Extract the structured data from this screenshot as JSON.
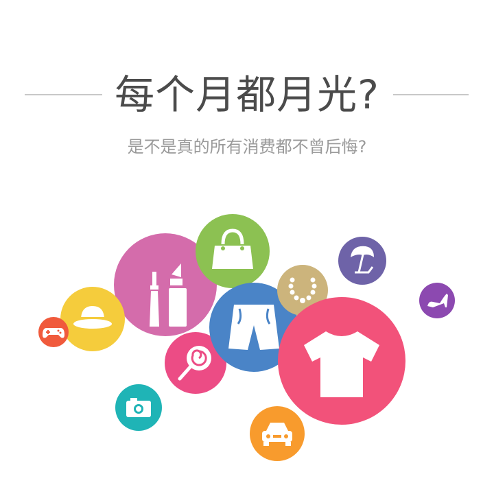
{
  "title": "每个月都月光?",
  "subtitle": "是不是真的所有消费都不曾后悔?",
  "colors": {
    "title": "#4b4b4b",
    "subtitle": "#9a9a9a",
    "rule": "#c8c8c8",
    "cosmetics": "#d46cab",
    "handbag": "#8cc152",
    "hat": "#f5cc3c",
    "gamepad": "#f05a3c",
    "lollipop": "#ec4c85",
    "shorts": "#4a84c7",
    "necklace": "#ccb47c",
    "tshirt": "#f2527a",
    "beach": "#6e63a8",
    "shoe": "#8c49b0",
    "camera": "#1fb4b6",
    "car": "#f89b2d"
  },
  "icons": [
    "cosmetics-icon",
    "handbag-icon",
    "hat-icon",
    "gamepad-icon",
    "lollipop-icon",
    "shorts-icon",
    "necklace-icon",
    "tshirt-icon",
    "beach-umbrella-icon",
    "high-heel-icon",
    "camera-icon",
    "car-icon"
  ]
}
